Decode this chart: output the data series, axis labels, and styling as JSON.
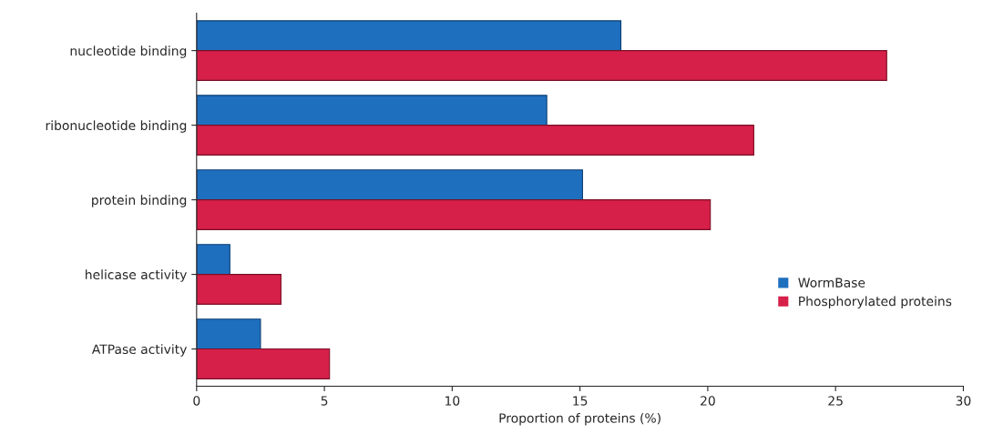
{
  "chart_data": {
    "type": "bar",
    "orientation": "horizontal",
    "categories": [
      "nucleotide binding",
      "ribonucleotide binding",
      "protein binding",
      "helicase activity",
      "ATPase activity"
    ],
    "series": [
      {
        "name": "WormBase",
        "color": "#1f6fbf",
        "values": [
          16.6,
          13.7,
          15.1,
          1.3,
          2.5
        ]
      },
      {
        "name": "Phosphorylated proteins",
        "color": "#d6204a",
        "values": [
          27.0,
          21.8,
          20.1,
          3.3,
          5.2
        ]
      }
    ],
    "xlabel": "Proportion of proteins (%)",
    "xlim": [
      0,
      30
    ],
    "xticks": [
      0,
      5,
      10,
      15,
      20,
      25,
      30
    ],
    "grid": false,
    "legend": "right"
  }
}
